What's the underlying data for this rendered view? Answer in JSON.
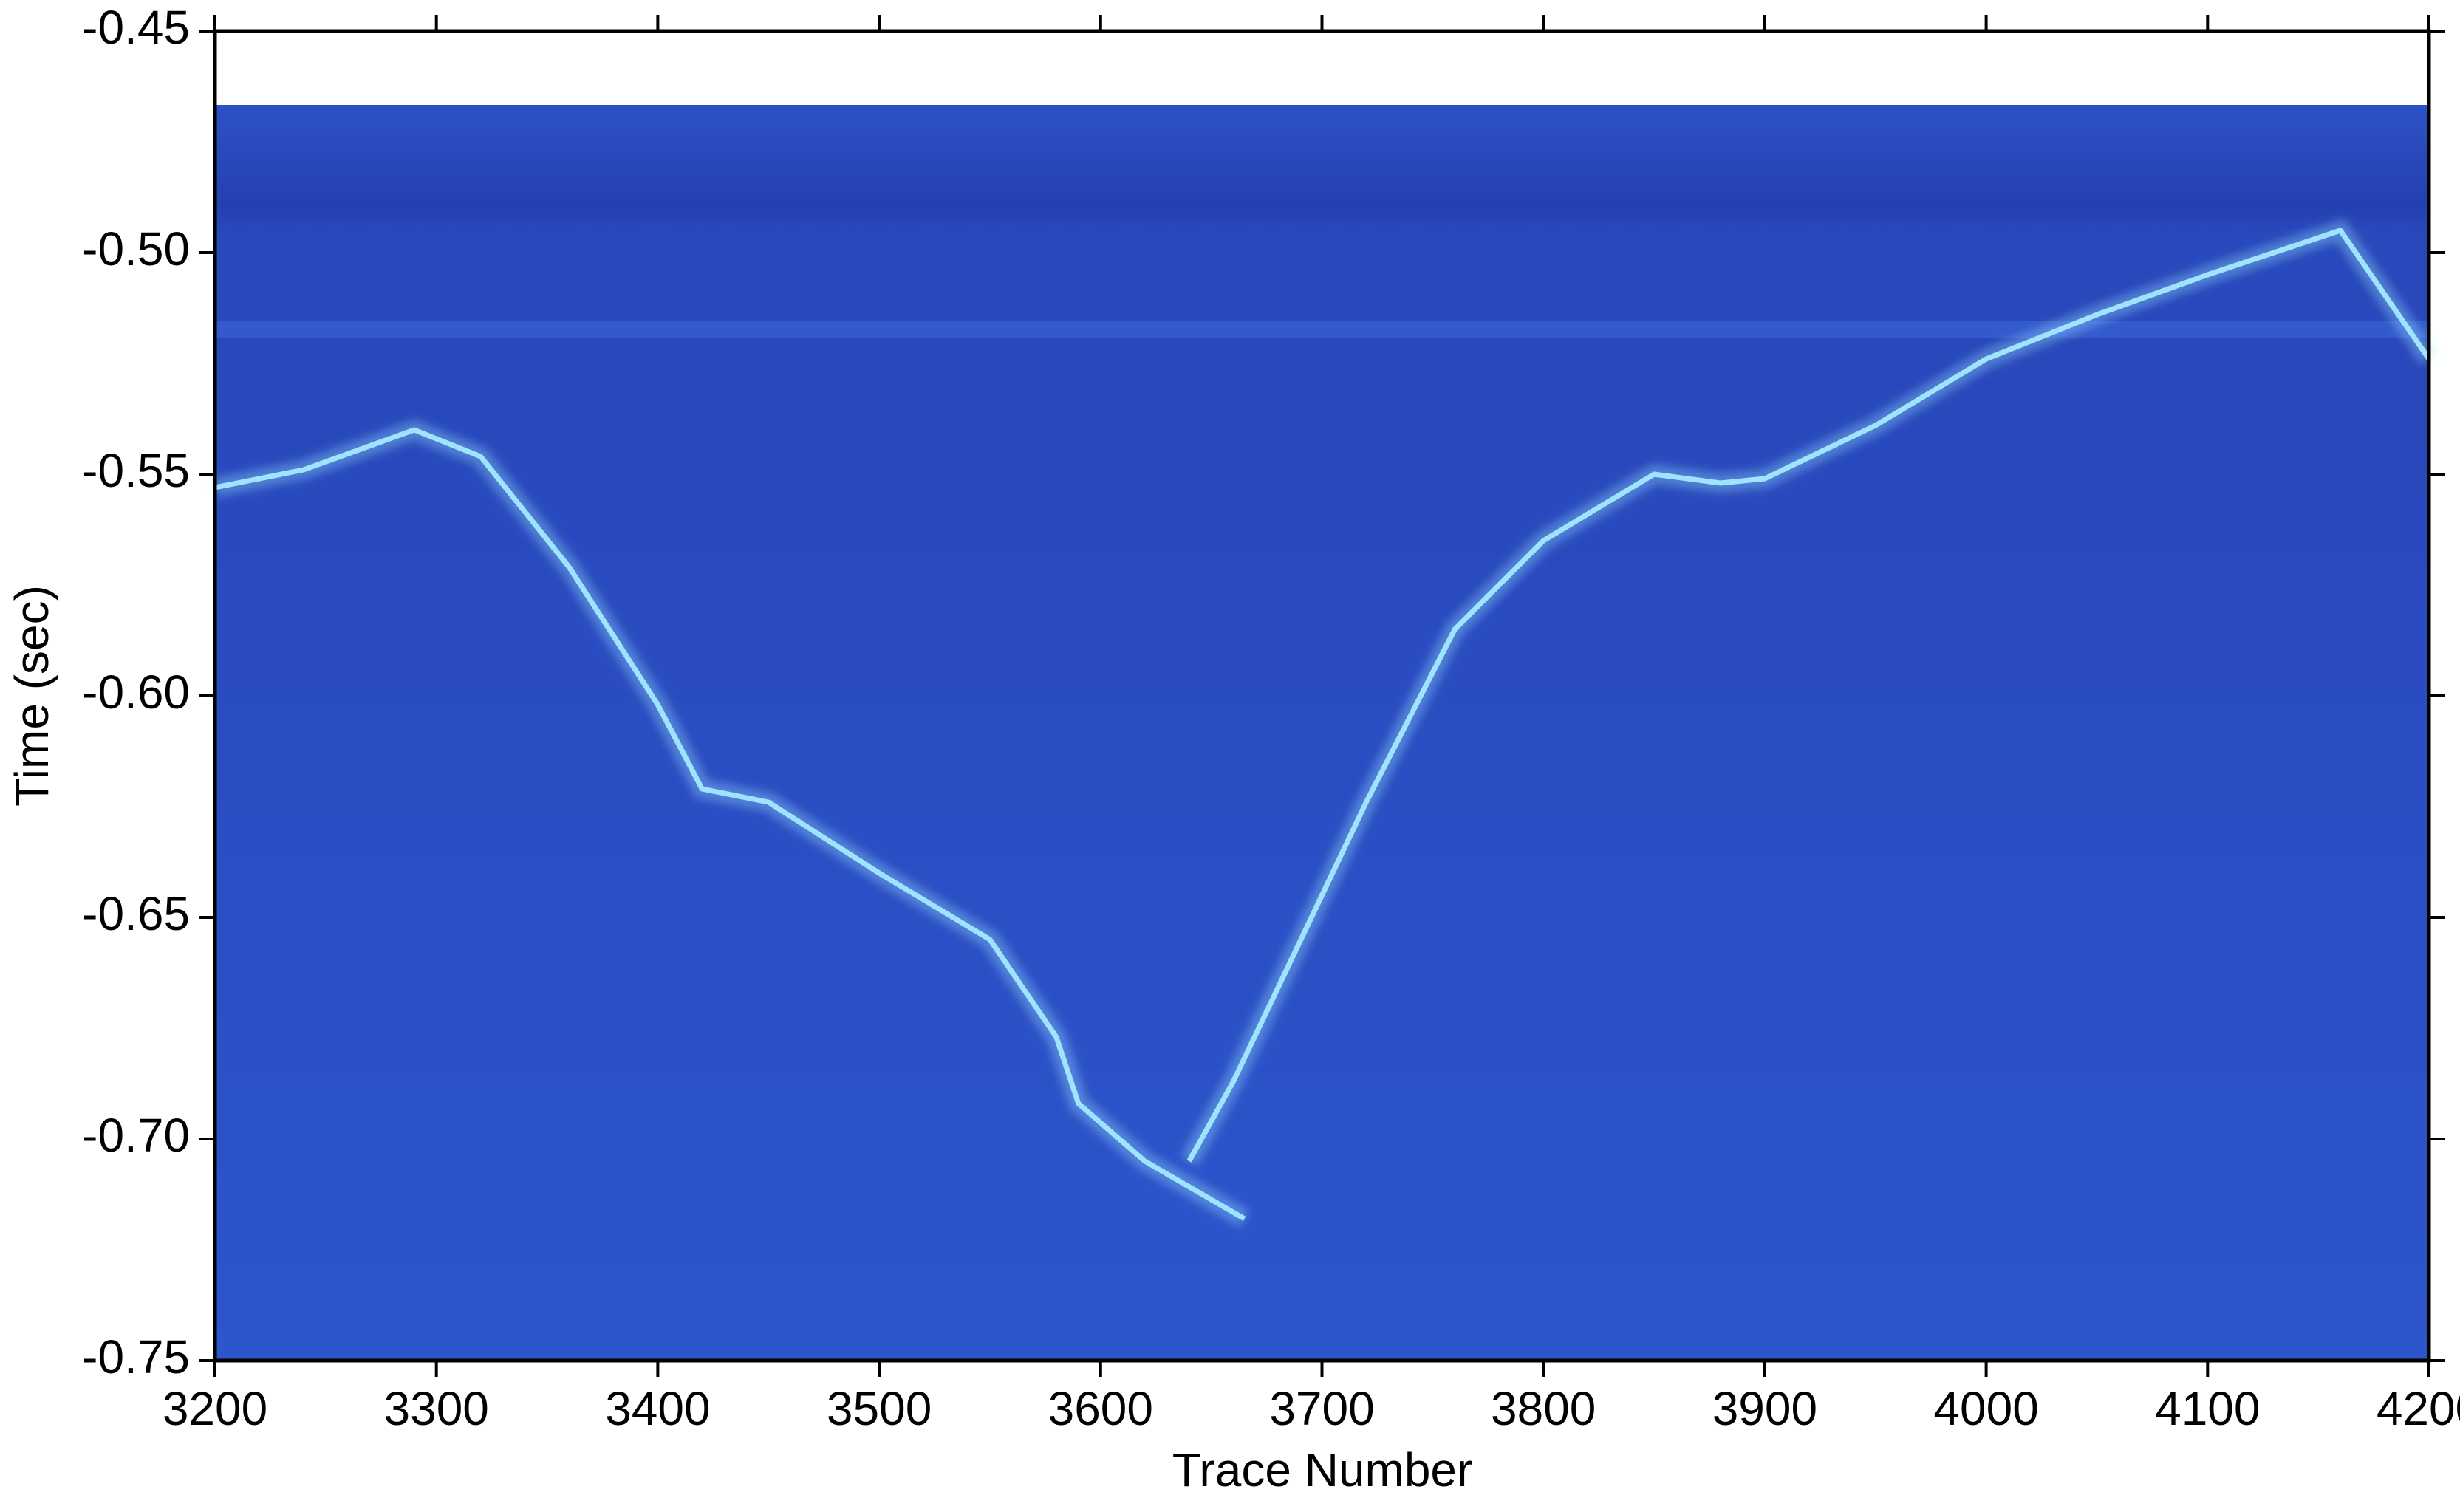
{
  "chart_data": {
    "type": "line",
    "xlabel": "Trace Number",
    "ylabel": "Time (sec)",
    "xlim": [
      3200,
      4200
    ],
    "ylim": [
      -0.75,
      -0.45
    ],
    "xticks": [
      3200,
      3300,
      3400,
      3500,
      3600,
      3700,
      3800,
      3900,
      4000,
      4100,
      4200
    ],
    "yticks": [
      -0.45,
      {
        "value": -0.5,
        "label": "-0.50"
      },
      -0.55,
      {
        "value": -0.6,
        "label": "-0.60"
      },
      -0.65,
      {
        "value": -0.7,
        "label": "-0.70"
      },
      -0.75
    ],
    "series": [
      {
        "color": "#9fe4ff",
        "x": [
          3200,
          3240,
          3290,
          3320,
          3360,
          3400,
          3420,
          3450,
          3500,
          3550,
          3580,
          3590,
          3620,
          3665
        ],
        "values": [
          -0.553,
          -0.549,
          -0.54,
          -0.546,
          -0.571,
          -0.602,
          -0.621,
          -0.624,
          -0.64,
          -0.655,
          -0.677,
          -0.692,
          -0.705,
          -0.718
        ]
      },
      {
        "color": "#9fe4ff",
        "x": [
          3640,
          3660,
          3680,
          3720,
          3760,
          3800,
          3850,
          3880,
          3900,
          3950,
          4000,
          4050,
          4100,
          4160,
          4200
        ],
        "values": [
          -0.705,
          -0.687,
          -0.666,
          -0.624,
          -0.585,
          -0.565,
          -0.55,
          -0.552,
          -0.551,
          -0.539,
          -0.524,
          -0.514,
          -0.505,
          -0.495,
          -0.524
        ]
      }
    ]
  }
}
